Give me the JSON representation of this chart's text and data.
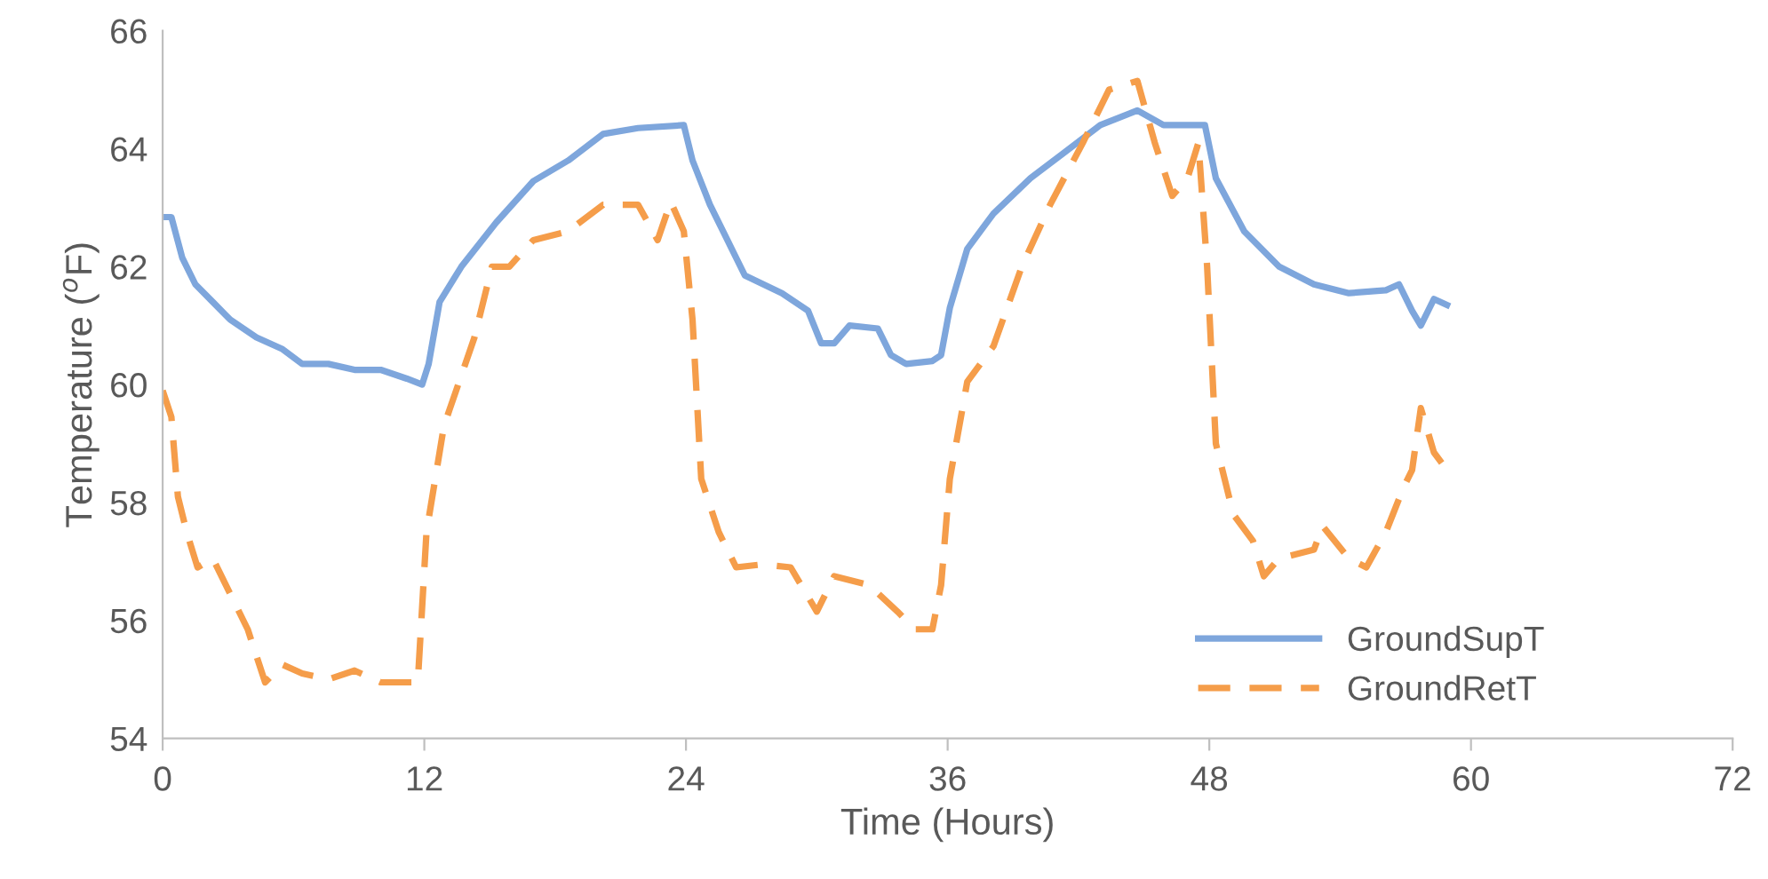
{
  "chart_data": {
    "type": "line",
    "xlabel": "Time (Hours)",
    "ylabel": "Temperature ($^{o}$F)",
    "xlim": [
      0,
      72
    ],
    "xticks": [
      0,
      12,
      24,
      36,
      48,
      60,
      72
    ],
    "ylim": [
      54,
      66
    ],
    "yticks": [
      54,
      56,
      58,
      60,
      62,
      64,
      66
    ],
    "grid": false,
    "legend": "bottom right",
    "series": [
      {
        "name": "GroundSupT",
        "color": "#7ea6dc",
        "line_style": "solid",
        "x": [
          0,
          0.4,
          0.9,
          1.5,
          2.3,
          3.1,
          4.3,
          5.5,
          6.4,
          7.6,
          8.8,
          10,
          11.2,
          11.9,
          12.2,
          12.7,
          13.7,
          15.3,
          17,
          18.6,
          20.2,
          21.8,
          23.9,
          24.3,
          25.1,
          26.7,
          28.4,
          29.6,
          30.2,
          30.8,
          31.5,
          32.8,
          33.4,
          34.1,
          35.3,
          35.7,
          36.1,
          36.9,
          38.1,
          39.8,
          41.4,
          43,
          44.7,
          45.9,
          46.7,
          47.8,
          48.3,
          49.6,
          51.2,
          52.8,
          54.4,
          56.1,
          56.7,
          57.3,
          57.7,
          58.3,
          58.9
        ],
        "values": [
          62.84,
          62.84,
          62.15,
          61.7,
          61.4,
          61.1,
          60.8,
          60.6,
          60.35,
          60.35,
          60.25,
          60.25,
          60.1,
          60.0,
          60.35,
          61.4,
          62.0,
          62.75,
          63.45,
          63.8,
          64.25,
          64.35,
          64.4,
          63.8,
          63.05,
          61.85,
          61.55,
          61.25,
          60.7,
          60.7,
          61.0,
          60.95,
          60.5,
          60.35,
          60.4,
          60.5,
          61.3,
          62.3,
          62.9,
          63.5,
          63.95,
          64.4,
          64.65,
          64.4,
          64.4,
          64.4,
          63.5,
          62.6,
          62.0,
          61.7,
          61.55,
          61.6,
          61.7,
          61.25,
          61.0,
          61.45,
          61.35
        ]
      },
      {
        "name": "GroundRetT",
        "color": "#f59d4a",
        "line_style": "dashed",
        "x": [
          0,
          0.4,
          0.7,
          1.1,
          1.6,
          2.3,
          3.1,
          3.9,
          4.7,
          5.5,
          6.4,
          7.6,
          8.8,
          10,
          11.2,
          11.7,
          12.1,
          12.9,
          14.3,
          15.1,
          15.9,
          17,
          18.6,
          20.2,
          21.8,
          22.7,
          23.3,
          23.9,
          24.3,
          24.7,
          25.5,
          26.3,
          27.5,
          28.8,
          30.0,
          30.8,
          32.4,
          33.7,
          34.5,
          35.3,
          35.7,
          36.1,
          36.9,
          38.1,
          39.4,
          40.7,
          42.2,
          43.4,
          44.7,
          45.5,
          46.3,
          47,
          47.5,
          47.9,
          48.3,
          49.1,
          50,
          50.5,
          51.2,
          52.8,
          53.2,
          54.4,
          55.2,
          56.1,
          56.9,
          57.3,
          57.7,
          58.3,
          58.9
        ],
        "values": [
          59.9,
          59.45,
          58.1,
          57.5,
          56.9,
          57.05,
          56.45,
          55.85,
          54.95,
          55.25,
          55.1,
          55.0,
          55.15,
          54.95,
          54.95,
          54.95,
          57.5,
          59.3,
          60.8,
          62.0,
          62.0,
          62.45,
          62.6,
          63.05,
          63.05,
          62.45,
          63.1,
          62.6,
          61.1,
          58.4,
          57.5,
          56.9,
          56.95,
          56.9,
          56.15,
          56.75,
          56.6,
          56.15,
          55.85,
          55.85,
          56.6,
          58.4,
          60.05,
          60.65,
          62.0,
          63.05,
          64.1,
          65.0,
          65.15,
          64.1,
          63.2,
          63.5,
          64.1,
          62.0,
          59.0,
          57.8,
          57.35,
          56.75,
          57.05,
          57.2,
          57.6,
          57.05,
          56.9,
          57.5,
          58.25,
          58.55,
          59.6,
          58.85,
          58.55
        ]
      }
    ]
  }
}
